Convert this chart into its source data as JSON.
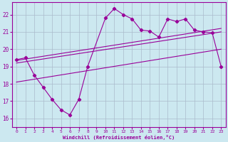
{
  "bg_color": "#cce8f0",
  "grid_color": "#aabbcc",
  "line_color": "#990099",
  "xlim": [
    -0.5,
    23.5
  ],
  "ylim": [
    15.5,
    22.7
  ],
  "yticks": [
    16,
    17,
    18,
    19,
    20,
    21,
    22
  ],
  "xticks": [
    0,
    1,
    2,
    3,
    4,
    5,
    6,
    7,
    8,
    9,
    10,
    11,
    12,
    13,
    14,
    15,
    16,
    17,
    18,
    19,
    20,
    21,
    22,
    23
  ],
  "xlabel": "Windchill (Refroidissement éolien,°C)",
  "series1_x": [
    0,
    1,
    2,
    3,
    4,
    5,
    6,
    7,
    8,
    10,
    11,
    12,
    13,
    14,
    15,
    16,
    17,
    18,
    19,
    20,
    21,
    22,
    23
  ],
  "series1_y": [
    19.4,
    19.5,
    18.5,
    17.8,
    17.1,
    16.5,
    16.2,
    17.1,
    19.0,
    21.8,
    22.35,
    22.0,
    21.75,
    21.1,
    21.05,
    20.7,
    21.75,
    21.6,
    21.75,
    21.1,
    21.0,
    20.95,
    19.0
  ],
  "line2_x": [
    0,
    23
  ],
  "line2_y": [
    19.35,
    21.2
  ],
  "line3_x": [
    0,
    23
  ],
  "line3_y": [
    19.2,
    21.0
  ],
  "line4_x": [
    0,
    23
  ],
  "line4_y": [
    18.1,
    20.0
  ]
}
